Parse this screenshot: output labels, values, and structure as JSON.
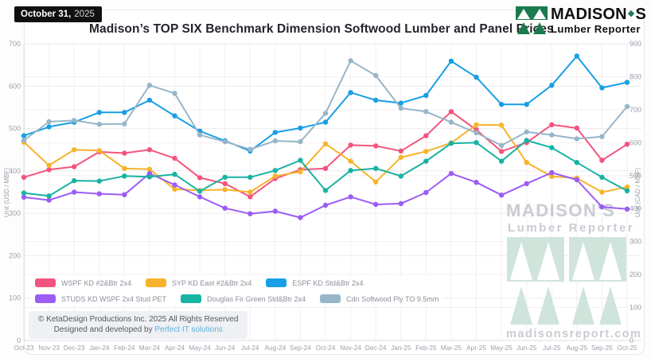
{
  "header": {
    "date_bold": "October 31,",
    "date_year": "2025",
    "title": "Madison’s TOP SIX Benchmark Dimension Softwood Lumber and Panel Prices"
  },
  "logo": {
    "name": "MADISON",
    "apostrophe": "◆",
    "name_s": "S",
    "tagline": "Lumber Reporter",
    "green": "#1B7A4E"
  },
  "axes": {
    "left_label": "Unit (USD / MBF)",
    "right_label": "Unit (CAD / MSF)",
    "left_ticks": [
      0,
      100,
      200,
      300,
      400,
      500,
      600,
      700
    ],
    "right_ticks": [
      0,
      100,
      200,
      300,
      400,
      500,
      600,
      700,
      800,
      900
    ]
  },
  "chart_data": {
    "type": "line",
    "title": "Madison’s TOP SIX Benchmark Dimension Softwood Lumber and Panel Prices",
    "xlabel": "",
    "ylabel_left": "Unit (USD / MBF)",
    "ylabel_right": "Unit (CAD / MSF)",
    "ylim_left": [
      0,
      700
    ],
    "ylim_right": [
      0,
      900
    ],
    "grid": true,
    "legend_position": "bottom-left",
    "x": [
      "Oct-23",
      "Nov-23",
      "Dec-23",
      "Jan-24",
      "Feb-24",
      "Mar-24",
      "Apr-24",
      "May-24",
      "Jun-24",
      "Jul-24",
      "Aug-24",
      "Sep-24",
      "Oct-24",
      "Nov-24",
      "Dec-24",
      "Jan-25",
      "Feb-25",
      "Mar-25",
      "Apr-25",
      "May-25",
      "Jun-25",
      "Jul-25",
      "Aug-25",
      "Sep-25",
      "Oct-25"
    ],
    "series": [
      {
        "name": "WSPF KD #2&Btr 2x4",
        "color": "#F2547D",
        "values": [
          385,
          403,
          410,
          445,
          442,
          450,
          430,
          384,
          370,
          339,
          382,
          403,
          406,
          461,
          459,
          447,
          483,
          540,
          497,
          446,
          467,
          509,
          501,
          425,
          463
        ]
      },
      {
        "name": "SYP KD East #2&Btr 2x4",
        "color": "#F7B32B",
        "values": [
          468,
          413,
          450,
          448,
          406,
          404,
          357,
          354,
          356,
          350,
          388,
          398,
          464,
          423,
          374,
          432,
          446,
          466,
          509,
          508,
          420,
          387,
          383,
          350,
          362
        ]
      },
      {
        "name": "ESPF KD Std&Btr 2x4",
        "color": "#189FE6",
        "values": [
          483,
          504,
          515,
          538,
          538,
          567,
          530,
          494,
          471,
          447,
          491,
          501,
          515,
          585,
          567,
          560,
          578,
          659,
          621,
          557,
          557,
          602,
          671,
          596,
          609
        ]
      },
      {
        "name": "STUDS KD WSPF 2x4 Stud PET",
        "color": "#9C5CF6",
        "values": [
          338,
          331,
          350,
          346,
          344,
          394,
          367,
          339,
          312,
          299,
          305,
          290,
          319,
          339,
          321,
          323,
          349,
          394,
          373,
          343,
          370,
          396,
          379,
          315,
          310
        ]
      },
      {
        "name": "Douglas Fir Green Std&Btr 2x4",
        "color": "#17B3A3",
        "values": [
          348,
          341,
          377,
          376,
          388,
          386,
          392,
          352,
          385,
          385,
          401,
          425,
          354,
          401,
          406,
          388,
          423,
          465,
          467,
          423,
          472,
          455,
          420,
          385,
          353
        ]
      },
      {
        "name": "Cdn Softwood Ply TO 9.5mm",
        "color": "#97B6C9",
        "values": [
          472,
          516,
          519,
          510,
          511,
          602,
          583,
          485,
          469,
          451,
          471,
          469,
          536,
          660,
          625,
          548,
          540,
          515,
          490,
          460,
          492,
          485,
          476,
          481,
          552
        ]
      }
    ]
  },
  "legend": {
    "rows": [
      [
        0,
        1,
        2
      ],
      [
        3,
        4,
        5
      ]
    ]
  },
  "watermark": {
    "line1": "MADISON'S",
    "line2": "Lumber Reporter",
    "url": "madisonsreport.com",
    "text_color": "#c9ccd1",
    "motif_color": "#cfe4db"
  },
  "footer": {
    "copyright": "© KetaDesign Productions Inc. 2025 All Rights Reserved",
    "designed_prefix": "Designed and developed by ",
    "designed_link": "Perfect IT solutions"
  }
}
